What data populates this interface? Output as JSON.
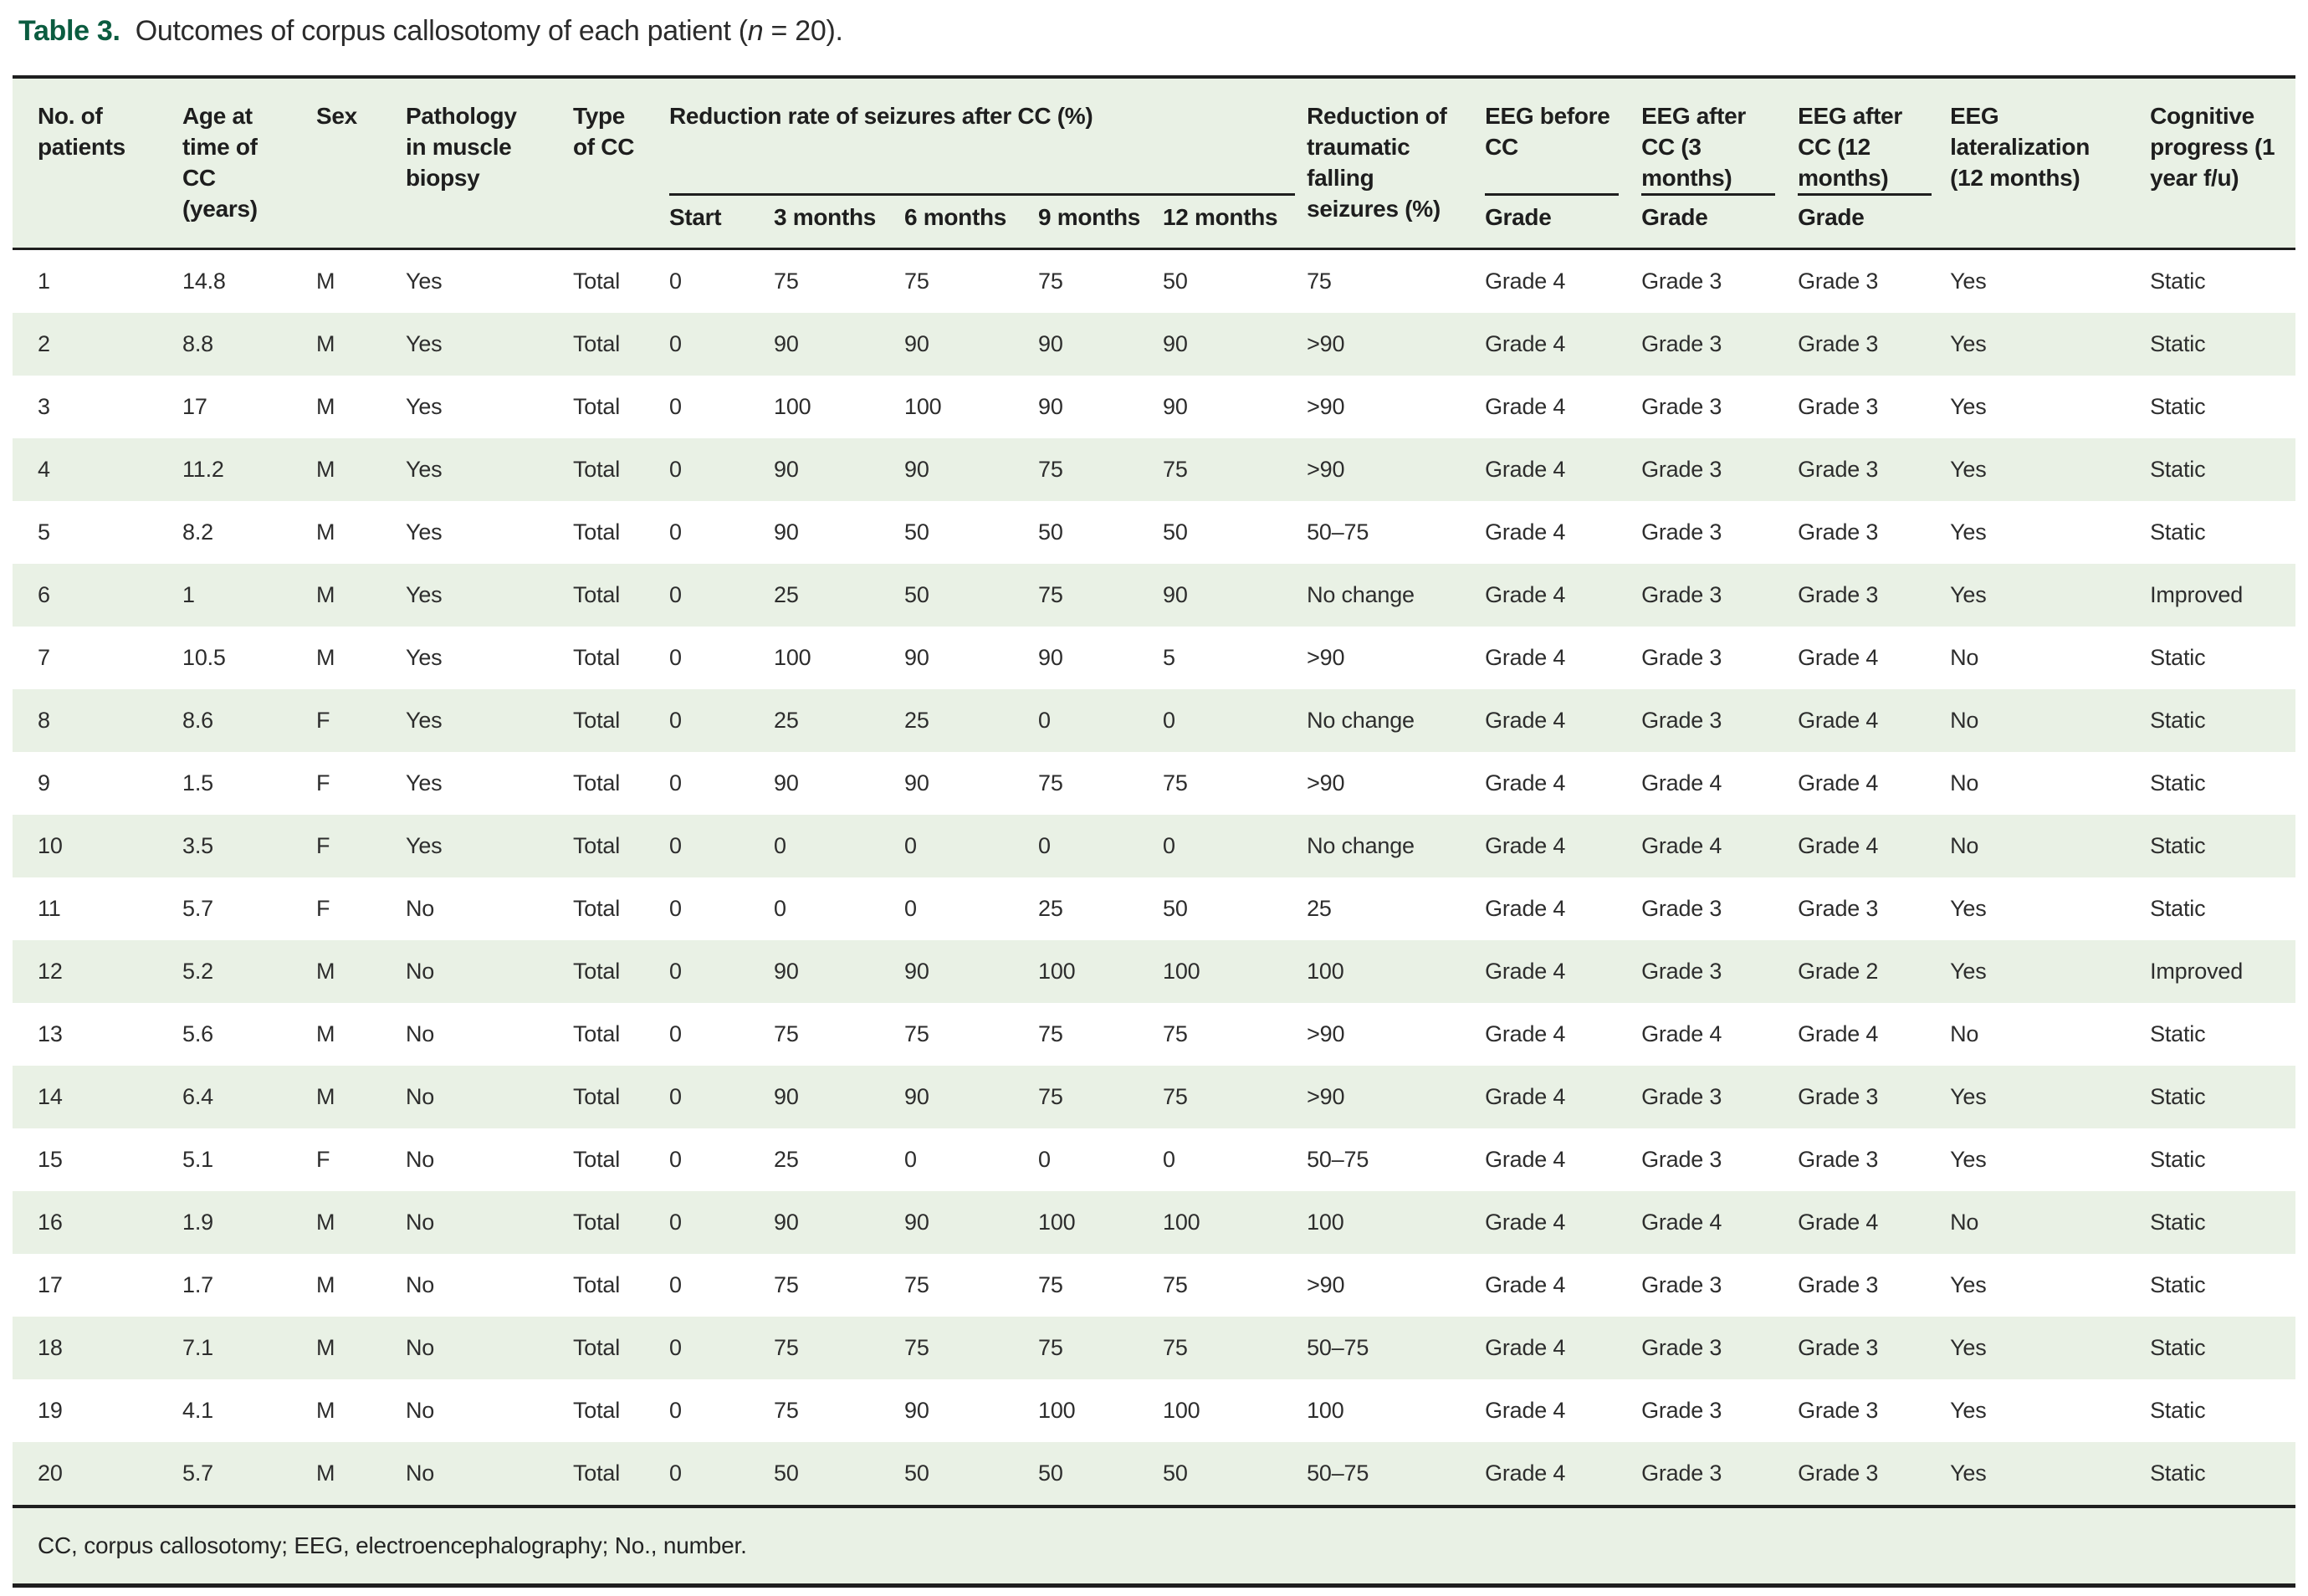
{
  "title": {
    "label": "Table 3.",
    "body_before": "Outcomes of corpus callosotomy of each patient (",
    "n_italic": "n",
    "body_after": " = 20)."
  },
  "colors": {
    "accent_green": "#0b5c40",
    "band_green": "#e9f1e5",
    "border_dark": "#1f1f1f"
  },
  "table": {
    "header": {
      "no_of_patients": "No. of patients",
      "age": "Age at time of CC (years)",
      "sex": "Sex",
      "pathology": "Pathology in muscle biopsy",
      "type_of_cc": "Type of CC",
      "reduction_rate_group": "Reduction rate of seizures after CC (%)",
      "reduction_traumatic": "Reduction of traumatic falling seizures (%)",
      "eeg_before": "EEG before CC",
      "eeg_after_3": "EEG after CC (3 months)",
      "eeg_after_12": "EEG after CC (12 months)",
      "eeg_lateralization": "EEG lateralization (12 months)",
      "cognitive": "Cognitive progress (1 year f/u)"
    },
    "sub_headers": [
      "Start",
      "3 months",
      "6 months",
      "9 months",
      "12 months"
    ],
    "grade_label": "Grade",
    "rows": [
      [
        "1",
        "14.8",
        "M",
        "Yes",
        "Total",
        "0",
        "75",
        "75",
        "75",
        "50",
        "75",
        "Grade 4",
        "Grade 3",
        "Grade 3",
        "Yes",
        "Static"
      ],
      [
        "2",
        "8.8",
        "M",
        "Yes",
        "Total",
        "0",
        "90",
        "90",
        "90",
        "90",
        ">90",
        "Grade 4",
        "Grade 3",
        "Grade 3",
        "Yes",
        "Static"
      ],
      [
        "3",
        "17",
        "M",
        "Yes",
        "Total",
        "0",
        "100",
        "100",
        "90",
        "90",
        ">90",
        "Grade 4",
        "Grade 3",
        "Grade 3",
        "Yes",
        "Static"
      ],
      [
        "4",
        "11.2",
        "M",
        "Yes",
        "Total",
        "0",
        "90",
        "90",
        "75",
        "75",
        ">90",
        "Grade 4",
        "Grade 3",
        "Grade 3",
        "Yes",
        "Static"
      ],
      [
        "5",
        "8.2",
        "M",
        "Yes",
        "Total",
        "0",
        "90",
        "50",
        "50",
        "50",
        "50–75",
        "Grade 4",
        "Grade 3",
        "Grade 3",
        "Yes",
        "Static"
      ],
      [
        "6",
        "1",
        "M",
        "Yes",
        "Total",
        "0",
        "25",
        "50",
        "75",
        "90",
        "No change",
        "Grade 4",
        "Grade 3",
        "Grade 3",
        "Yes",
        "Improved"
      ],
      [
        "7",
        "10.5",
        "M",
        "Yes",
        "Total",
        "0",
        "100",
        "90",
        "90",
        "5",
        ">90",
        "Grade 4",
        "Grade 3",
        "Grade 4",
        "No",
        "Static"
      ],
      [
        "8",
        "8.6",
        "F",
        "Yes",
        "Total",
        "0",
        "25",
        "25",
        "0",
        "0",
        "No change",
        "Grade 4",
        "Grade 3",
        "Grade 4",
        "No",
        "Static"
      ],
      [
        "9",
        "1.5",
        "F",
        "Yes",
        "Total",
        "0",
        "90",
        "90",
        "75",
        "75",
        ">90",
        "Grade 4",
        "Grade 4",
        "Grade 4",
        "No",
        "Static"
      ],
      [
        "10",
        "3.5",
        "F",
        "Yes",
        "Total",
        "0",
        "0",
        "0",
        "0",
        "0",
        "No change",
        "Grade 4",
        "Grade 4",
        "Grade 4",
        "No",
        "Static"
      ],
      [
        "11",
        "5.7",
        "F",
        "No",
        "Total",
        "0",
        "0",
        "0",
        "25",
        "50",
        "25",
        "Grade 4",
        "Grade 3",
        "Grade 3",
        "Yes",
        "Static"
      ],
      [
        "12",
        "5.2",
        "M",
        "No",
        "Total",
        "0",
        "90",
        "90",
        "100",
        "100",
        "100",
        "Grade 4",
        "Grade 3",
        "Grade 2",
        "Yes",
        "Improved"
      ],
      [
        "13",
        "5.6",
        "M",
        "No",
        "Total",
        "0",
        "75",
        "75",
        "75",
        "75",
        ">90",
        "Grade 4",
        "Grade 4",
        "Grade 4",
        "No",
        "Static"
      ],
      [
        "14",
        "6.4",
        "M",
        "No",
        "Total",
        "0",
        "90",
        "90",
        "75",
        "75",
        ">90",
        "Grade 4",
        "Grade 3",
        "Grade 3",
        "Yes",
        "Static"
      ],
      [
        "15",
        "5.1",
        "F",
        "No",
        "Total",
        "0",
        "25",
        "0",
        "0",
        "0",
        "50–75",
        "Grade 4",
        "Grade 3",
        "Grade 3",
        "Yes",
        "Static"
      ],
      [
        "16",
        "1.9",
        "M",
        "No",
        "Total",
        "0",
        "90",
        "90",
        "100",
        "100",
        "100",
        "Grade 4",
        "Grade 4",
        "Grade 4",
        "No",
        "Static"
      ],
      [
        "17",
        "1.7",
        "M",
        "No",
        "Total",
        "0",
        "75",
        "75",
        "75",
        "75",
        ">90",
        "Grade 4",
        "Grade 3",
        "Grade 3",
        "Yes",
        "Static"
      ],
      [
        "18",
        "7.1",
        "M",
        "No",
        "Total",
        "0",
        "75",
        "75",
        "75",
        "75",
        "50–75",
        "Grade 4",
        "Grade 3",
        "Grade 3",
        "Yes",
        "Static"
      ],
      [
        "19",
        "4.1",
        "M",
        "No",
        "Total",
        "0",
        "75",
        "90",
        "100",
        "100",
        "100",
        "Grade 4",
        "Grade 3",
        "Grade 3",
        "Yes",
        "Static"
      ],
      [
        "20",
        "5.7",
        "M",
        "No",
        "Total",
        "0",
        "50",
        "50",
        "50",
        "50",
        "50–75",
        "Grade 4",
        "Grade 3",
        "Grade 3",
        "Yes",
        "Static"
      ]
    ],
    "footnote": "CC, corpus callosotomy; EEG, electroencephalography; No., number."
  }
}
